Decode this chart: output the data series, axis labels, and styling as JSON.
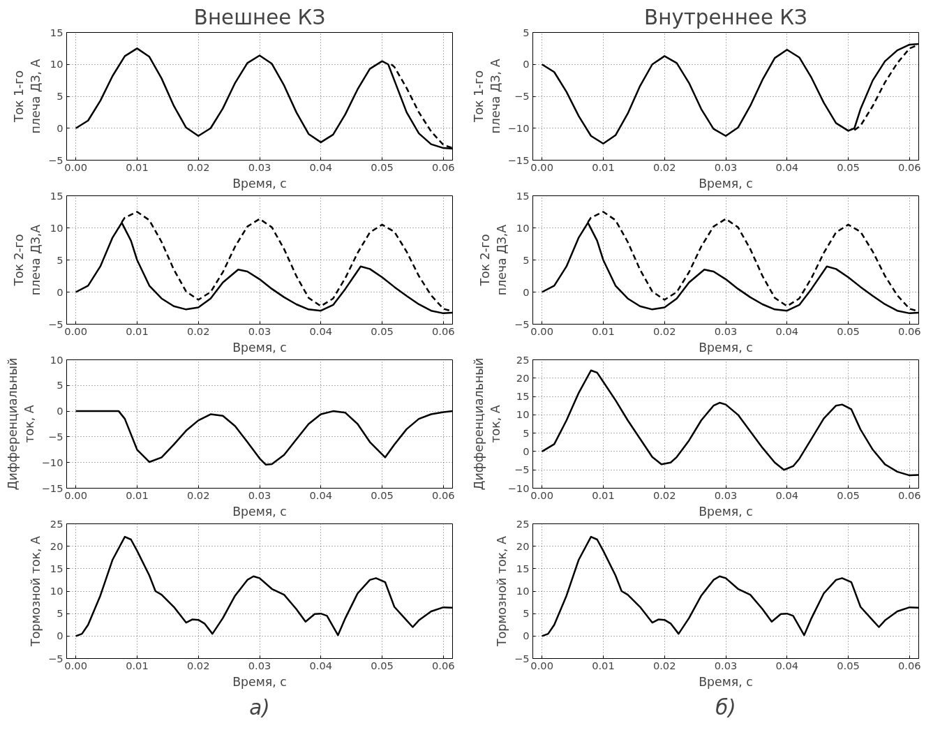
{
  "chart_data": [
    {
      "type": "line",
      "title": "Внешнее КЗ",
      "xlabel": "Время, с",
      "ylabel": "Ток 1-го\nплеча ДЗ, А",
      "xlim": [
        -0.0015,
        0.0615
      ],
      "ylim": [
        -5,
        15
      ],
      "xticks": [
        {
          "value": 0,
          "label": "0.00"
        },
        {
          "value": 0.01,
          "label": "0.01"
        },
        {
          "value": 0.02,
          "label": "0.02"
        },
        {
          "value": 0.03,
          "label": "0.03"
        },
        {
          "value": 0.04,
          "label": "0.04"
        },
        {
          "value": 0.05,
          "label": "0.05"
        },
        {
          "value": 0.06,
          "label": "0.06"
        }
      ],
      "yticks": [
        -5,
        0,
        5,
        10,
        15
      ],
      "grid": true,
      "series": [
        {
          "color": "#000000",
          "line_style": "solid",
          "x": [
            0,
            0.002,
            0.004,
            0.006,
            0.008,
            0.01,
            0.012,
            0.014,
            0.016,
            0.018,
            0.02,
            0.022,
            0.024,
            0.026,
            0.028,
            0.03,
            0.032,
            0.034,
            0.036,
            0.038,
            0.04,
            0.042,
            0.044,
            0.046,
            0.048,
            0.05,
            0.051,
            0.052,
            0.054,
            0.056,
            0.058,
            0.06,
            0.0615
          ],
          "values": [
            0,
            1.2,
            4.3,
            8.2,
            11.3,
            12.5,
            11.2,
            7.8,
            3.5,
            0.1,
            -1.2,
            0,
            3.1,
            7.1,
            10.2,
            11.4,
            10.1,
            6.7,
            2.5,
            -0.9,
            -2.2,
            -1,
            2.2,
            6.1,
            9.3,
            10.5,
            10,
            7.5,
            2.5,
            -0.8,
            -2.5,
            -3.1,
            -3.2
          ]
        },
        {
          "color": "#000000",
          "line_style": "dashed",
          "x": [
            0.0515,
            0.052,
            0.054,
            0.056,
            0.058,
            0.06,
            0.0615
          ],
          "values": [
            10,
            9.6,
            6.3,
            2.5,
            -0.5,
            -2.6,
            -3.1
          ]
        }
      ]
    },
    {
      "type": "line",
      "title": "Внутреннее КЗ",
      "xlabel": "Время, с",
      "ylabel": "Ток 1-го\nплеча ДЗ, А",
      "xlim": [
        -0.0015,
        0.0615
      ],
      "ylim": [
        -15,
        5
      ],
      "xticks": [
        {
          "value": 0,
          "label": "0.00"
        },
        {
          "value": 0.01,
          "label": "0.01"
        },
        {
          "value": 0.02,
          "label": "0.02"
        },
        {
          "value": 0.03,
          "label": "0.03"
        },
        {
          "value": 0.04,
          "label": "0.04"
        },
        {
          "value": 0.05,
          "label": "0.05"
        },
        {
          "value": 0.06,
          "label": "0.06"
        }
      ],
      "yticks": [
        -15,
        -10,
        -5,
        0,
        5
      ],
      "grid": true,
      "series": [
        {
          "color": "#000000",
          "line_style": "solid",
          "x": [
            0,
            0.002,
            0.004,
            0.006,
            0.008,
            0.01,
            0.012,
            0.014,
            0.016,
            0.018,
            0.02,
            0.022,
            0.024,
            0.026,
            0.028,
            0.03,
            0.032,
            0.034,
            0.036,
            0.038,
            0.04,
            0.042,
            0.044,
            0.046,
            0.048,
            0.05,
            0.051,
            0.052,
            0.054,
            0.056,
            0.058,
            0.06,
            0.0615
          ],
          "values": [
            0,
            -1.2,
            -4.3,
            -8.1,
            -11.2,
            -12.4,
            -11.1,
            -7.7,
            -3.4,
            0,
            1.3,
            0.2,
            -2.9,
            -7,
            -10.1,
            -11.2,
            -9.9,
            -6.5,
            -2.4,
            1,
            2.3,
            1.1,
            -2.1,
            -6,
            -9.2,
            -10.4,
            -10,
            -7,
            -2.5,
            0.5,
            2.2,
            3.1,
            3.2
          ]
        },
        {
          "color": "#000000",
          "line_style": "dashed",
          "x": [
            0.051,
            0.052,
            0.054,
            0.056,
            0.058,
            0.06,
            0.0615
          ],
          "values": [
            -10.3,
            -9.6,
            -6.5,
            -2.8,
            0.2,
            2.5,
            3.1
          ]
        }
      ]
    },
    {
      "type": "line",
      "xlabel": "Время, с",
      "ylabel": "Ток 2-го\nплеча ДЗ,А",
      "xlim": [
        -0.0015,
        0.0615
      ],
      "ylim": [
        -5,
        15
      ],
      "xticks": [
        {
          "value": 0,
          "label": "0.00"
        },
        {
          "value": 0.01,
          "label": "0.01"
        },
        {
          "value": 0.02,
          "label": "0.02"
        },
        {
          "value": 0.03,
          "label": "0.03"
        },
        {
          "value": 0.04,
          "label": "0.04"
        },
        {
          "value": 0.05,
          "label": "0.05"
        },
        {
          "value": 0.06,
          "label": "0.06"
        }
      ],
      "yticks": [
        -5,
        0,
        5,
        10,
        15
      ],
      "grid": true,
      "series": [
        {
          "color": "#000000",
          "line_style": "solid",
          "x": [
            0,
            0.002,
            0.004,
            0.006,
            0.0075,
            0.009,
            0.01,
            0.012,
            0.014,
            0.016,
            0.018,
            0.02,
            0.022,
            0.024,
            0.0265,
            0.028,
            0.03,
            0.032,
            0.034,
            0.036,
            0.038,
            0.04,
            0.042,
            0.044,
            0.0465,
            0.048,
            0.05,
            0.052,
            0.054,
            0.056,
            0.058,
            0.06,
            0.0615
          ],
          "values": [
            0,
            1,
            4,
            8.5,
            10.8,
            8,
            5,
            1,
            -1,
            -2.2,
            -2.7,
            -2.4,
            -1,
            1.5,
            3.5,
            3.2,
            2,
            0.5,
            -0.8,
            -1.9,
            -2.7,
            -2.9,
            -2,
            0.5,
            4,
            3.6,
            2.3,
            0.8,
            -0.6,
            -1.9,
            -2.9,
            -3.3,
            -3.2
          ]
        },
        {
          "color": "#000000",
          "line_style": "dashed",
          "x": [
            0.0075,
            0.008,
            0.01,
            0.012,
            0.014,
            0.016,
            0.018,
            0.02,
            0.022,
            0.024,
            0.026,
            0.028,
            0.03,
            0.032,
            0.034,
            0.036,
            0.038,
            0.04,
            0.042,
            0.044,
            0.046,
            0.048,
            0.05,
            0.052,
            0.054,
            0.056,
            0.058,
            0.06,
            0.0615
          ],
          "values": [
            10.9,
            11.6,
            12.5,
            11.2,
            7.8,
            3.5,
            0.1,
            -1.2,
            0,
            3.1,
            7.1,
            10.2,
            11.4,
            10.1,
            6.7,
            2.5,
            -0.9,
            -2.2,
            -1,
            2.2,
            6.1,
            9.3,
            10.5,
            9.4,
            6.3,
            2.5,
            -0.5,
            -2.6,
            -3
          ]
        }
      ]
    },
    {
      "type": "line",
      "xlabel": "Время, с",
      "ylabel": "Ток 2-го\nплеча ДЗ,А",
      "xlim": [
        -0.0015,
        0.0615
      ],
      "ylim": [
        -5,
        15
      ],
      "xticks": [
        {
          "value": 0,
          "label": "0.00"
        },
        {
          "value": 0.01,
          "label": "0.01"
        },
        {
          "value": 0.02,
          "label": "0.02"
        },
        {
          "value": 0.03,
          "label": "0.03"
        },
        {
          "value": 0.04,
          "label": "0.04"
        },
        {
          "value": 0.05,
          "label": "0.05"
        },
        {
          "value": 0.06,
          "label": "0.06"
        }
      ],
      "yticks": [
        -5,
        0,
        5,
        10,
        15
      ],
      "grid": true,
      "series": [
        {
          "color": "#000000",
          "line_style": "solid",
          "x": [
            0,
            0.002,
            0.004,
            0.006,
            0.0075,
            0.009,
            0.01,
            0.012,
            0.014,
            0.016,
            0.018,
            0.02,
            0.022,
            0.024,
            0.0265,
            0.028,
            0.03,
            0.032,
            0.034,
            0.036,
            0.038,
            0.04,
            0.042,
            0.044,
            0.0465,
            0.048,
            0.05,
            0.052,
            0.054,
            0.056,
            0.058,
            0.06,
            0.0615
          ],
          "values": [
            0,
            1,
            4,
            8.5,
            10.8,
            8,
            5,
            1,
            -1,
            -2.2,
            -2.7,
            -2.4,
            -1,
            1.5,
            3.5,
            3.2,
            2,
            0.5,
            -0.8,
            -1.9,
            -2.7,
            -2.9,
            -2,
            0.5,
            4,
            3.6,
            2.3,
            0.8,
            -0.6,
            -1.9,
            -2.9,
            -3.3,
            -3.2
          ]
        },
        {
          "color": "#000000",
          "line_style": "dashed",
          "x": [
            0.0075,
            0.008,
            0.01,
            0.012,
            0.014,
            0.016,
            0.018,
            0.02,
            0.022,
            0.024,
            0.026,
            0.028,
            0.03,
            0.032,
            0.034,
            0.036,
            0.038,
            0.04,
            0.042,
            0.044,
            0.046,
            0.048,
            0.05,
            0.052,
            0.054,
            0.056,
            0.058,
            0.06,
            0.0615
          ],
          "values": [
            10.9,
            11.6,
            12.5,
            11.2,
            7.8,
            3.5,
            0.1,
            -1.2,
            0,
            3.1,
            7.1,
            10.2,
            11.4,
            10.1,
            6.7,
            2.5,
            -0.9,
            -2.2,
            -1,
            2.2,
            6.1,
            9.3,
            10.5,
            9.4,
            6.3,
            2.5,
            -0.5,
            -2.6,
            -3
          ]
        }
      ]
    },
    {
      "type": "line",
      "xlabel": "Время, с",
      "ylabel": "Дифференциальный\nток, А",
      "xlim": [
        -0.0015,
        0.0615
      ],
      "ylim": [
        -15,
        10
      ],
      "xticks": [
        {
          "value": 0,
          "label": "0.00"
        },
        {
          "value": 0.01,
          "label": "0.01"
        },
        {
          "value": 0.02,
          "label": "0.02"
        },
        {
          "value": 0.03,
          "label": "0.03"
        },
        {
          "value": 0.04,
          "label": "0.04"
        },
        {
          "value": 0.05,
          "label": "0.05"
        },
        {
          "value": 0.06,
          "label": "0.06"
        }
      ],
      "yticks": [
        -15,
        -10,
        -5,
        0,
        5,
        10
      ],
      "grid": true,
      "series": [
        {
          "color": "#000000",
          "line_style": "solid",
          "x": [
            0,
            0.007,
            0.008,
            0.01,
            0.012,
            0.014,
            0.016,
            0.018,
            0.02,
            0.022,
            0.024,
            0.026,
            0.028,
            0.03,
            0.031,
            0.032,
            0.034,
            0.036,
            0.038,
            0.04,
            0.042,
            0.044,
            0.046,
            0.048,
            0.0505,
            0.052,
            0.054,
            0.056,
            0.058,
            0.06,
            0.0615
          ],
          "values": [
            0,
            0,
            -1.5,
            -7.5,
            -9.9,
            -9,
            -6.5,
            -3.8,
            -1.8,
            -0.6,
            -0.9,
            -2.9,
            -6,
            -9.2,
            -10.4,
            -10.3,
            -8.5,
            -5.5,
            -2.5,
            -0.6,
            0,
            -0.3,
            -2.5,
            -6,
            -9,
            -6.5,
            -3.5,
            -1.5,
            -0.6,
            -0.2,
            0
          ]
        }
      ]
    },
    {
      "type": "line",
      "xlabel": "Время, с",
      "ylabel": "Дифференциальный\nток, А",
      "xlim": [
        -0.0015,
        0.0615
      ],
      "ylim": [
        -10,
        25
      ],
      "xticks": [
        {
          "value": 0,
          "label": "0.00"
        },
        {
          "value": 0.01,
          "label": "0.01"
        },
        {
          "value": 0.02,
          "label": "0.02"
        },
        {
          "value": 0.03,
          "label": "0.03"
        },
        {
          "value": 0.04,
          "label": "0.04"
        },
        {
          "value": 0.05,
          "label": "0.05"
        },
        {
          "value": 0.06,
          "label": "0.06"
        }
      ],
      "yticks": [
        -10,
        -5,
        0,
        5,
        10,
        15,
        20,
        25
      ],
      "grid": true,
      "series": [
        {
          "color": "#000000",
          "line_style": "solid",
          "x": [
            0,
            0.002,
            0.004,
            0.006,
            0.008,
            0.009,
            0.01,
            0.012,
            0.014,
            0.016,
            0.018,
            0.0195,
            0.021,
            0.022,
            0.024,
            0.026,
            0.028,
            0.029,
            0.03,
            0.032,
            0.034,
            0.036,
            0.038,
            0.0395,
            0.041,
            0.042,
            0.044,
            0.046,
            0.048,
            0.049,
            0.0505,
            0.052,
            0.054,
            0.056,
            0.058,
            0.06,
            0.0615
          ],
          "values": [
            0,
            2,
            8.5,
            16,
            22.1,
            21.5,
            19,
            14,
            8.5,
            3.5,
            -1.5,
            -3.5,
            -3,
            -1.5,
            3,
            8.5,
            12.5,
            13.3,
            12.8,
            10,
            5.5,
            1,
            -3,
            -5,
            -4,
            -2,
            3.5,
            9,
            12.5,
            12.8,
            11.5,
            6,
            0.5,
            -3.5,
            -5.5,
            -6.5,
            -6.4
          ]
        }
      ]
    },
    {
      "type": "line",
      "xlabel": "Время, с",
      "ylabel": "Тормозной ток, А",
      "annotations": [
        "а)"
      ],
      "xlim": [
        -0.0015,
        0.0615
      ],
      "ylim": [
        -5,
        25
      ],
      "xticks": [
        {
          "value": 0,
          "label": "0.00"
        },
        {
          "value": 0.01,
          "label": "0.01"
        },
        {
          "value": 0.02,
          "label": "0.02"
        },
        {
          "value": 0.03,
          "label": "0.03"
        },
        {
          "value": 0.04,
          "label": "0.04"
        },
        {
          "value": 0.05,
          "label": "0.05"
        },
        {
          "value": 0.06,
          "label": "0.06"
        }
      ],
      "yticks": [
        -5,
        0,
        5,
        10,
        15,
        20,
        25
      ],
      "grid": true,
      "series": [
        {
          "color": "#000000",
          "line_style": "solid",
          "x": [
            0,
            0.001,
            0.002,
            0.004,
            0.006,
            0.008,
            0.009,
            0.01,
            0.012,
            0.013,
            0.014,
            0.016,
            0.018,
            0.019,
            0.02,
            0.021,
            0.0223,
            0.024,
            0.026,
            0.028,
            0.029,
            0.03,
            0.032,
            0.034,
            0.036,
            0.0375,
            0.039,
            0.04,
            0.041,
            0.0428,
            0.044,
            0.046,
            0.048,
            0.049,
            0.0505,
            0.052,
            0.054,
            0.055,
            0.056,
            0.058,
            0.06,
            0.0615
          ],
          "values": [
            0,
            0.5,
            2.5,
            9,
            17,
            22.1,
            21.5,
            19,
            13.5,
            10,
            9.2,
            6.5,
            3,
            3.7,
            3.6,
            2.8,
            0.5,
            4,
            9,
            12.5,
            13.3,
            12.9,
            10.5,
            9.2,
            6,
            3.2,
            4.9,
            5,
            4.5,
            0.2,
            4,
            9.5,
            12.5,
            12.9,
            12,
            6.5,
            3.5,
            2,
            3.5,
            5.5,
            6.4,
            6.3
          ]
        }
      ]
    },
    {
      "type": "line",
      "xlabel": "Время, с",
      "ylabel": "Тормозной ток, А",
      "annotations": [
        "б)"
      ],
      "xlim": [
        -0.0015,
        0.0615
      ],
      "ylim": [
        -5,
        25
      ],
      "xticks": [
        {
          "value": 0,
          "label": "0.00"
        },
        {
          "value": 0.01,
          "label": "0.01"
        },
        {
          "value": 0.02,
          "label": "0.02"
        },
        {
          "value": 0.03,
          "label": "0.03"
        },
        {
          "value": 0.04,
          "label": "0.04"
        },
        {
          "value": 0.05,
          "label": "0.05"
        },
        {
          "value": 0.06,
          "label": "0.06"
        }
      ],
      "yticks": [
        -5,
        0,
        5,
        10,
        15,
        20,
        25
      ],
      "grid": true,
      "series": [
        {
          "color": "#000000",
          "line_style": "solid",
          "x": [
            0,
            0.001,
            0.002,
            0.004,
            0.006,
            0.008,
            0.009,
            0.01,
            0.012,
            0.013,
            0.014,
            0.016,
            0.018,
            0.019,
            0.02,
            0.021,
            0.0223,
            0.024,
            0.026,
            0.028,
            0.029,
            0.03,
            0.032,
            0.034,
            0.036,
            0.0375,
            0.039,
            0.04,
            0.041,
            0.0428,
            0.044,
            0.046,
            0.048,
            0.049,
            0.0505,
            0.052,
            0.054,
            0.055,
            0.056,
            0.058,
            0.06,
            0.0615
          ],
          "values": [
            0,
            0.5,
            2.5,
            9,
            17,
            22.1,
            21.5,
            19,
            13.5,
            10,
            9.2,
            6.5,
            3,
            3.7,
            3.6,
            2.8,
            0.5,
            4,
            9,
            12.5,
            13.3,
            12.9,
            10.5,
            9.2,
            6,
            3.2,
            4.9,
            5,
            4.5,
            0.2,
            4,
            9.5,
            12.5,
            12.9,
            12,
            6.5,
            3.5,
            2,
            3.5,
            5.5,
            6.4,
            6.3
          ]
        }
      ]
    }
  ]
}
